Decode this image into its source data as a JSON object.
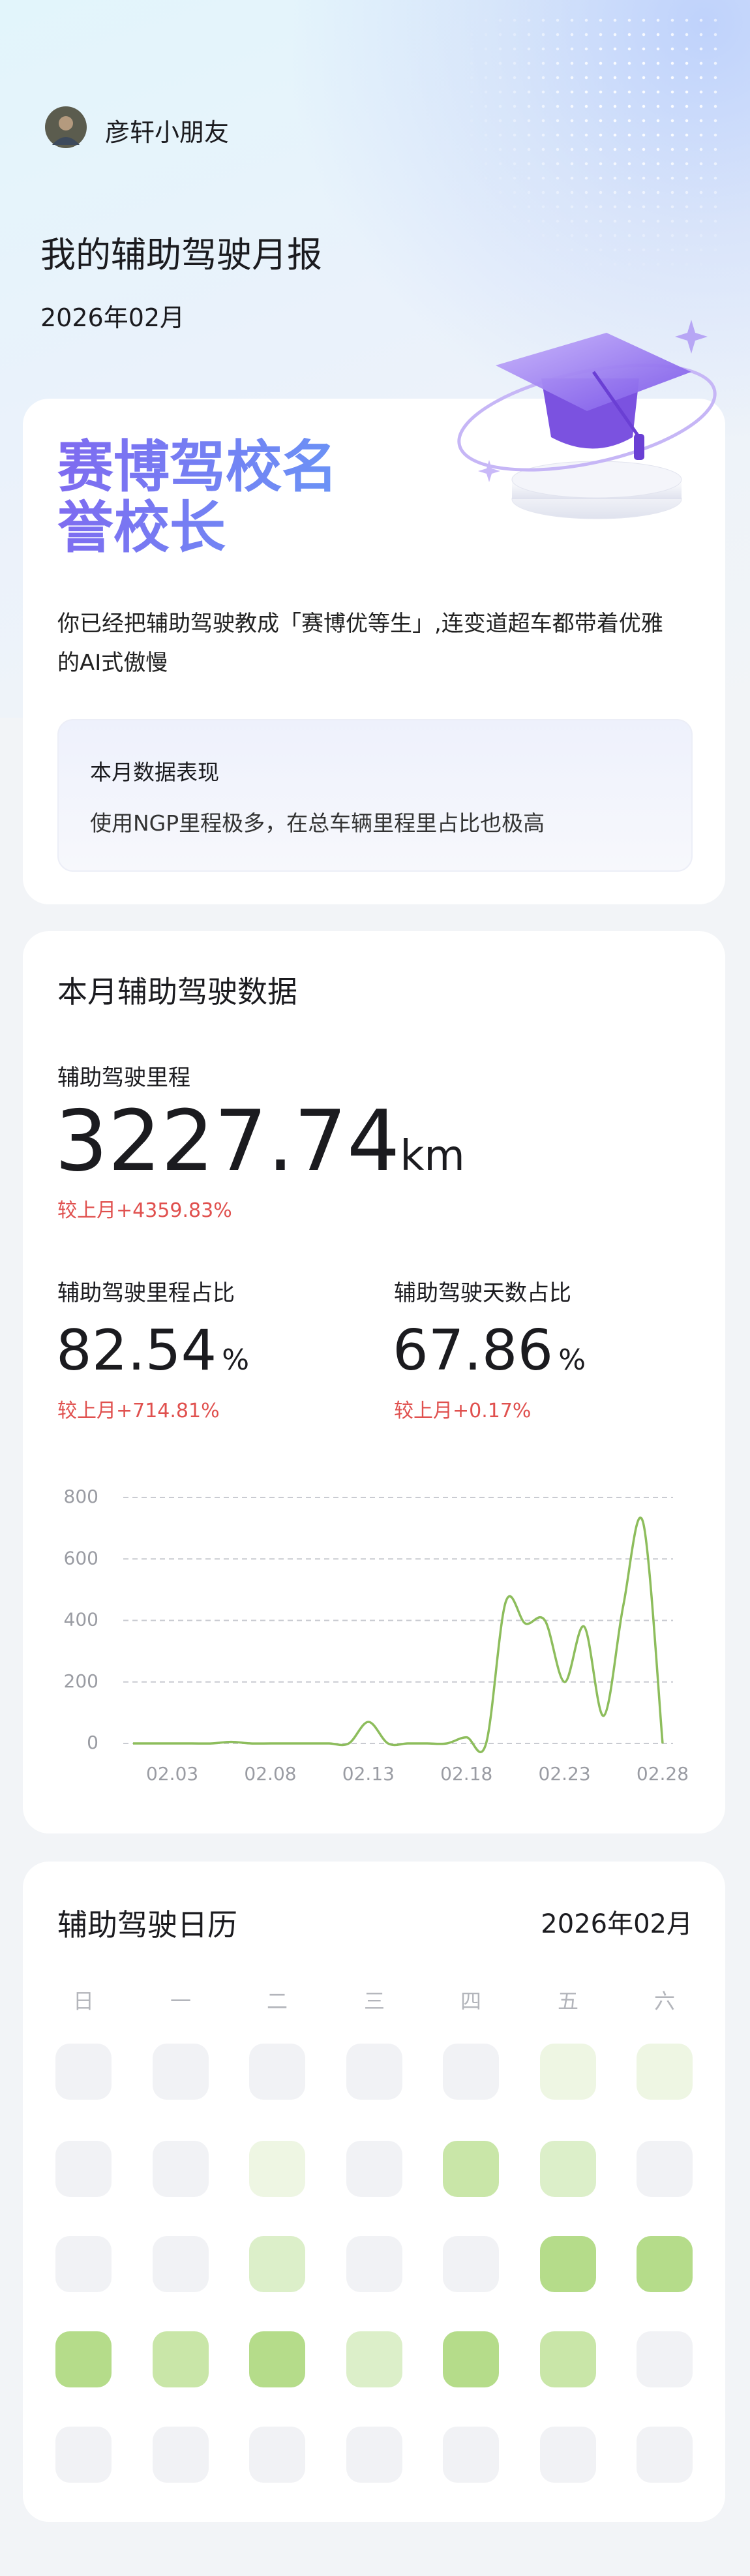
{
  "header": {
    "user_name": "彦轩小朋友",
    "title": "我的辅助驾驶月报",
    "date": "2026年02月"
  },
  "badge": {
    "title_lines": [
      "赛博驾校名",
      "誉校长"
    ],
    "description": "你已经把辅助驾驶教成「赛博优等生」,连变道超车都带着优雅的AI式傲慢",
    "highlight_title": "本月数据表现",
    "highlight_text": "使用NGP里程极多，在总车辆里程里占比也极高"
  },
  "stats": {
    "title": "本月辅助驾驶数据",
    "metrics": [
      {
        "label": "辅助驾驶里程",
        "value": 3227.74,
        "unit": "km",
        "change": "较上月+4359.83%"
      },
      {
        "label": "辅助驾驶里程占比",
        "value": 82.54,
        "unit": "%",
        "change": "较上月+714.81%"
      },
      {
        "label": "辅助驾驶天数占比",
        "value": 67.86,
        "unit": "%",
        "change": "较上月+0.17%"
      }
    ]
  },
  "chart_data": {
    "type": "line",
    "categories": [
      null,
      null,
      "02.03",
      null,
      null,
      null,
      null,
      "02.08",
      null,
      null,
      null,
      null,
      "02.13",
      null,
      null,
      null,
      null,
      "02.18",
      null,
      null,
      null,
      null,
      "02.23",
      null,
      null,
      null,
      null,
      "02.28"
    ],
    "values": [
      0,
      0,
      0,
      0,
      0,
      5,
      0,
      0,
      0,
      0,
      0,
      0,
      70,
      0,
      0,
      0,
      0,
      20,
      0,
      460,
      390,
      400,
      200,
      380,
      90,
      450,
      720,
      0
    ],
    "color": "#8dbd5c",
    "ylim": [
      0,
      800
    ],
    "yticks": [
      0,
      200,
      400,
      600,
      800
    ],
    "grid": true
  },
  "calendar": {
    "title": "辅助驾驶日历",
    "month": "2026年02月",
    "weekdays": [
      "日",
      "一",
      "二",
      "三",
      "四",
      "五",
      "六"
    ],
    "level_colors": [
      "#f1f2f5",
      "#eef6e3",
      "#dcefc9",
      "#c9e6a8",
      "#b5dc8a"
    ],
    "levels": [
      [
        0,
        0,
        0,
        0,
        0,
        1,
        1
      ],
      [
        0,
        0,
        1,
        0,
        3,
        2,
        0
      ],
      [
        0,
        0,
        2,
        0,
        0,
        4,
        4
      ],
      [
        4,
        3,
        4,
        2,
        4,
        3,
        0
      ]
    ]
  }
}
